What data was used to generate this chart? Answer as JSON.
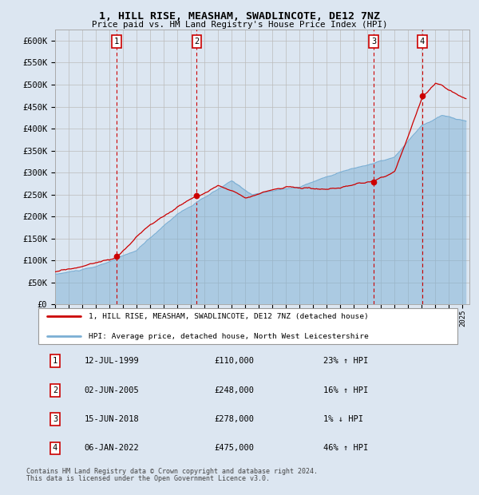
{
  "title1": "1, HILL RISE, MEASHAM, SWADLINCOTE, DE12 7NZ",
  "title2": "Price paid vs. HM Land Registry's House Price Index (HPI)",
  "ylabel_ticks": [
    "£0",
    "£50K",
    "£100K",
    "£150K",
    "£200K",
    "£250K",
    "£300K",
    "£350K",
    "£400K",
    "£450K",
    "£500K",
    "£550K",
    "£600K"
  ],
  "ytick_vals": [
    0,
    50000,
    100000,
    150000,
    200000,
    250000,
    300000,
    350000,
    400000,
    450000,
    500000,
    550000,
    600000
  ],
  "xlim_start": 1995.0,
  "xlim_end": 2025.5,
  "ylim_top": 625000,
  "transactions": [
    {
      "label": "1",
      "date": "12-JUL-1999",
      "year": 1999.53,
      "price": 110000,
      "hpi_pct": "23%",
      "direction": "↑"
    },
    {
      "label": "2",
      "date": "02-JUN-2005",
      "year": 2005.42,
      "price": 248000,
      "hpi_pct": "16%",
      "direction": "↑"
    },
    {
      "label": "3",
      "date": "15-JUN-2018",
      "year": 2018.45,
      "price": 278000,
      "hpi_pct": "1%",
      "direction": "↓"
    },
    {
      "label": "4",
      "date": "06-JAN-2022",
      "year": 2022.02,
      "price": 475000,
      "hpi_pct": "46%",
      "direction": "↑"
    }
  ],
  "legend_line1": "1, HILL RISE, MEASHAM, SWADLINCOTE, DE12 7NZ (detached house)",
  "legend_line2": "HPI: Average price, detached house, North West Leicestershire",
  "footnote1": "Contains HM Land Registry data © Crown copyright and database right 2024.",
  "footnote2": "This data is licensed under the Open Government Licence v3.0.",
  "bg_color": "#dce6f1",
  "plot_bg": "#dce6f1",
  "grid_color": "#bbbbbb",
  "red_color": "#cc0000",
  "blue_color": "#7bafd4"
}
